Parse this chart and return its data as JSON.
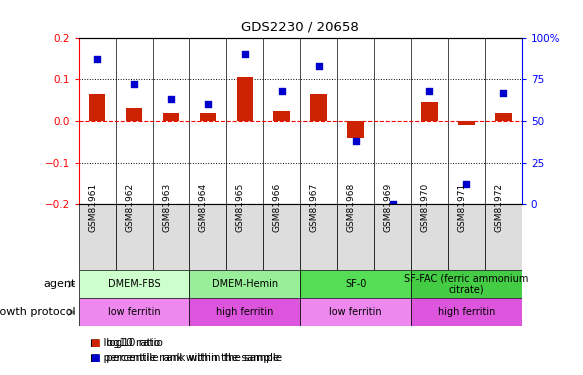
{
  "title": "GDS2230 / 20658",
  "samples": [
    "GSM81961",
    "GSM81962",
    "GSM81963",
    "GSM81964",
    "GSM81965",
    "GSM81966",
    "GSM81967",
    "GSM81968",
    "GSM81969",
    "GSM81970",
    "GSM81971",
    "GSM81972"
  ],
  "log10_ratio": [
    0.065,
    0.03,
    0.02,
    0.02,
    0.105,
    0.025,
    0.065,
    -0.04,
    0.0,
    0.045,
    -0.01,
    0.02
  ],
  "percentile_rank": [
    87,
    72,
    63,
    60,
    90,
    68,
    83,
    38,
    0,
    68,
    12,
    67
  ],
  "ylim": [
    -0.2,
    0.2
  ],
  "yticks_left": [
    -0.2,
    -0.1,
    0.0,
    0.1,
    0.2
  ],
  "yticks_right": [
    0,
    25,
    50,
    75,
    100
  ],
  "agent_groups": [
    {
      "label": "DMEM-FBS",
      "start": 0,
      "end": 3,
      "color": "#ccffcc"
    },
    {
      "label": "DMEM-Hemin",
      "start": 3,
      "end": 6,
      "color": "#99ee99"
    },
    {
      "label": "SF-0",
      "start": 6,
      "end": 9,
      "color": "#55dd55"
    },
    {
      "label": "SF-FAC (ferric ammonium\ncitrate)",
      "start": 9,
      "end": 12,
      "color": "#44cc44"
    }
  ],
  "protocol_groups": [
    {
      "label": "low ferritin",
      "start": 0,
      "end": 3,
      "color": "#ee88ee"
    },
    {
      "label": "high ferritin",
      "start": 3,
      "end": 6,
      "color": "#dd55dd"
    },
    {
      "label": "low ferritin",
      "start": 6,
      "end": 9,
      "color": "#ee88ee"
    },
    {
      "label": "high ferritin",
      "start": 9,
      "end": 12,
      "color": "#dd55dd"
    }
  ],
  "bar_color": "#cc2200",
  "dot_color": "#0000cc",
  "zero_line_color": "#ff0000",
  "legend_items": [
    {
      "label": "log10 ratio",
      "color": "#cc2200"
    },
    {
      "label": "percentile rank within the sample",
      "color": "#0000cc"
    }
  ],
  "agent_label": "agent",
  "protocol_label": "growth protocol",
  "xtick_bg_color": "#dddddd"
}
